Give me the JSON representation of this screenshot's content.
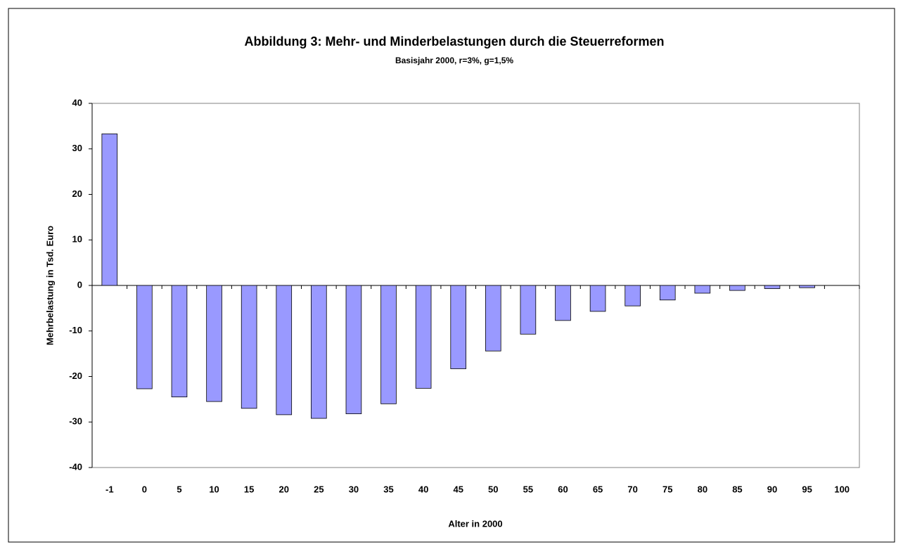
{
  "chart_data": {
    "type": "bar",
    "title": "Abbildung 3: Mehr- und Minderbelastungen durch die Steuerreformen",
    "subtitle": "Basisjahr 2000, r=3%, g=1,5%",
    "x_label": "Alter in 2000",
    "y_label": "Mehrbelastung in Tsd. Euro",
    "categories": [
      "-1",
      "0",
      "5",
      "10",
      "15",
      "20",
      "25",
      "30",
      "35",
      "40",
      "45",
      "50",
      "55",
      "60",
      "65",
      "70",
      "75",
      "80",
      "85",
      "90",
      "95",
      "100"
    ],
    "values": [
      33.3,
      -22.7,
      -24.5,
      -25.5,
      -27,
      -28.4,
      -29.2,
      -28.2,
      -26,
      -22.6,
      -18.3,
      -14.4,
      -10.7,
      -7.7,
      -5.7,
      -4.5,
      -3.2,
      -1.7,
      -1.1,
      -0.7,
      -0.5,
      0
    ],
    "color": "#9999ff",
    "ylim": [
      -40,
      40
    ],
    "yticks": [
      -40,
      -30,
      -20,
      -10,
      0,
      10,
      20,
      30,
      40
    ],
    "grid": false
  }
}
